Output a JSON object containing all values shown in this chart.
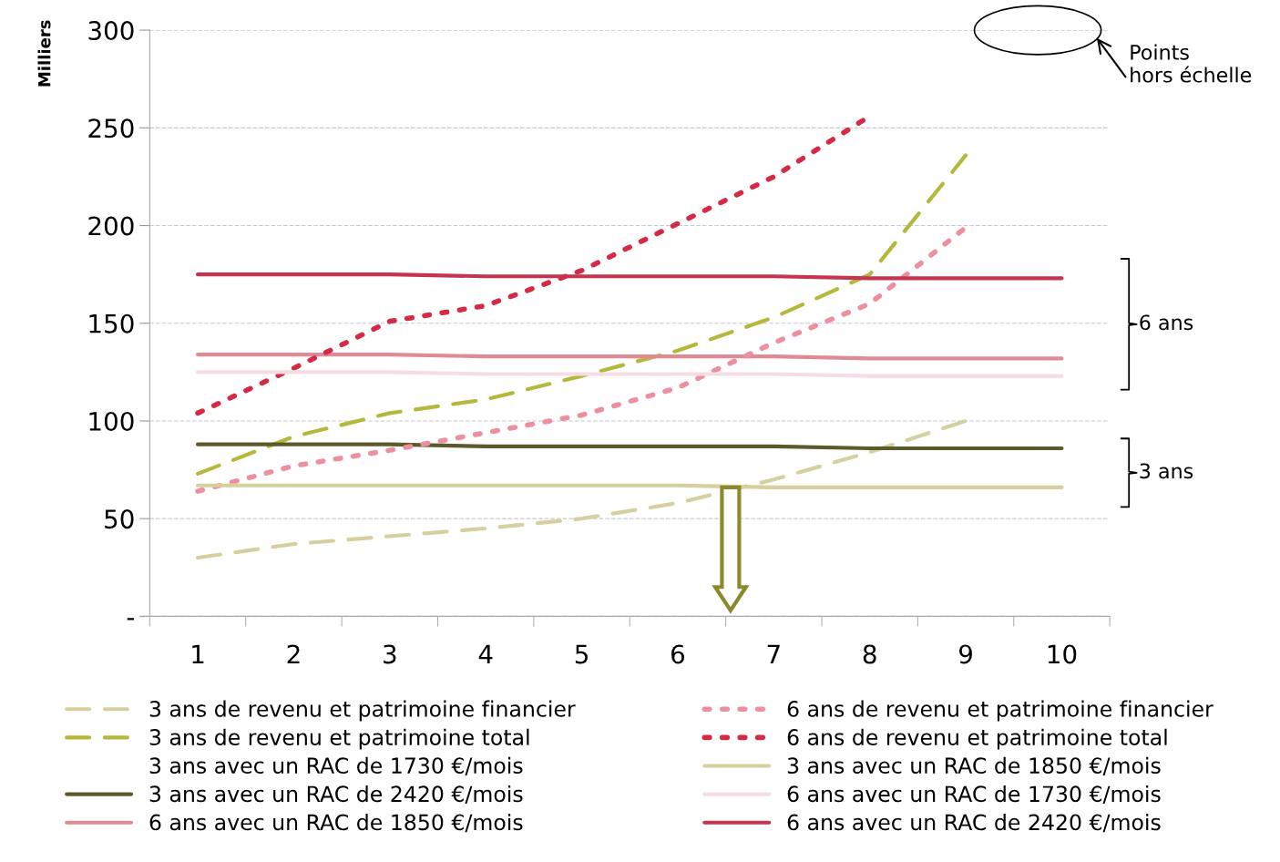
{
  "chart_data": {
    "type": "line",
    "ylabel": "Milliers",
    "categories": [
      "1",
      "2",
      "3",
      "4",
      "5",
      "6",
      "7",
      "8",
      "9",
      "10"
    ],
    "ylim": [
      0,
      300
    ],
    "yticks": [
      {
        "value": 0,
        "label": "-"
      },
      50,
      100,
      150,
      200,
      250,
      300
    ],
    "grid": "y",
    "legend": "bottom",
    "marker": "none",
    "series": [
      {
        "name": "3 ans de revenu et patrimoine financier",
        "color": "#d6d0a0",
        "line_style": "dashed",
        "values": [
          30,
          37,
          41,
          45,
          50,
          58,
          70,
          84,
          100,
          null
        ]
      },
      {
        "name": "3 ans de revenu et patrimoine total",
        "color": "#b5b83a",
        "line_style": "dashed",
        "values": [
          73,
          92,
          104,
          111,
          123,
          136,
          153,
          175,
          236,
          null
        ]
      },
      {
        "name": "3 ans avec un RAC de 1730 €/mois",
        "line_style": "solid",
        "values": [
          null,
          null,
          null,
          null,
          null,
          null,
          null,
          null,
          null,
          null
        ]
      },
      {
        "name": "3 ans avec un RAC de 2420 €/mois",
        "color": "#5c5a2a",
        "line_style": "solid",
        "values": [
          88,
          88,
          88,
          87,
          87,
          87,
          87,
          86,
          86,
          86
        ]
      },
      {
        "name": "6 ans avec un RAC de 1850 €/mois",
        "color": "#e08a95",
        "line_style": "solid",
        "values": [
          134,
          134,
          134,
          133,
          133,
          133,
          133,
          132,
          132,
          132
        ]
      },
      {
        "name": "6 ans de revenu et patrimoine financier",
        "color": "#ee8fa0",
        "line_style": "dotted",
        "values": [
          64,
          77,
          85,
          94,
          103,
          117,
          140,
          160,
          199,
          null
        ]
      },
      {
        "name": "6 ans de revenu et patrimoine total",
        "color": "#d42a45",
        "line_style": "dotted",
        "values": [
          104,
          127,
          151,
          159,
          177,
          201,
          225,
          256,
          null,
          null
        ]
      },
      {
        "name": "3 ans avec un RAC de 1850 €/mois",
        "color": "#d6cf9e",
        "line_style": "solid",
        "values": [
          67,
          67,
          67,
          67,
          67,
          67,
          66,
          66,
          66,
          66
        ]
      },
      {
        "name": "6 ans avec un RAC de 1730 €/mois",
        "color": "#f5dde3",
        "line_style": "solid",
        "values": [
          125,
          125,
          125,
          124,
          124,
          124,
          124,
          123,
          123,
          123
        ]
      },
      {
        "name": "6 ans avec un RAC de 2420 €/mois",
        "color": "#c8344f",
        "line_style": "solid",
        "values": [
          175,
          175,
          175,
          174,
          174,
          174,
          174,
          173,
          173,
          173
        ]
      }
    ],
    "annotations": [
      "Points hors échelle",
      "6 ans",
      "3 ans"
    ]
  }
}
